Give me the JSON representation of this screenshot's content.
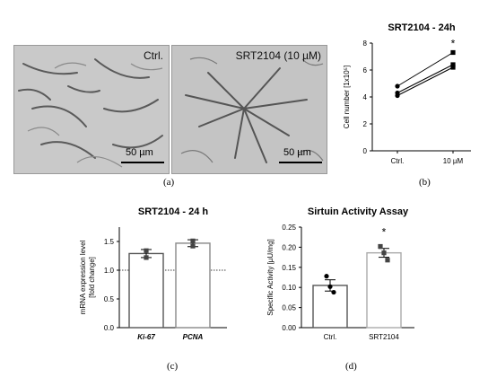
{
  "panels": {
    "a": {
      "label": "(a)",
      "images": [
        {
          "label": "Ctrl.",
          "scale": "50 µm"
        },
        {
          "label": "SRT2104 (10 µM)",
          "scale": "50 µm"
        }
      ]
    },
    "b": {
      "label": "(b)"
    },
    "c": {
      "label": "(c)"
    },
    "d": {
      "label": "(d)"
    }
  },
  "chart_data": [
    {
      "id": "b",
      "type": "line",
      "title": "SRT2104 - 24h",
      "ylabel": "Cell number [1x10⁵]",
      "categories": [
        "Ctrl.",
        "10 µM"
      ],
      "ylim": [
        0,
        8
      ],
      "yticks": [
        0,
        2,
        4,
        6,
        8
      ],
      "series": [
        {
          "values": [
            4.8,
            7.3
          ],
          "marker_end": "square"
        },
        {
          "values": [
            4.3,
            6.4
          ],
          "marker_end": "square"
        },
        {
          "values": [
            4.1,
            6.2
          ],
          "marker_end": "square"
        }
      ],
      "annotation": "*"
    },
    {
      "id": "c",
      "type": "bar",
      "title": "SRT2104 - 24 h",
      "ylabel_lines": [
        "mRNA expression level",
        "[fold change]"
      ],
      "categories": [
        "Ki-67",
        "PCNA"
      ],
      "values": [
        1.29,
        1.47
      ],
      "errors": [
        0.07,
        0.06
      ],
      "points": [
        [
          1.34,
          1.22
        ],
        [
          1.51,
          1.42
        ]
      ],
      "ylim": [
        0,
        1.75
      ],
      "yticks": [
        "0.0",
        "0.5",
        "1.0",
        "1.5"
      ],
      "reference_line": 1.0
    },
    {
      "id": "d",
      "type": "bar",
      "title": "Sirtuin Activity Assay",
      "ylabel": "Specific Activity [µU/mg]",
      "categories": [
        "Ctrl.",
        "SRT2104"
      ],
      "values": [
        0.105,
        0.186
      ],
      "errors": [
        0.014,
        0.011
      ],
      "points": [
        [
          0.128,
          0.102,
          0.088
        ],
        [
          0.202,
          0.186,
          0.168
        ]
      ],
      "ylim": [
        0,
        0.25
      ],
      "yticks": [
        "0.00",
        "0.05",
        "0.10",
        "0.15",
        "0.20",
        "0.25"
      ],
      "annotation": "*"
    }
  ]
}
